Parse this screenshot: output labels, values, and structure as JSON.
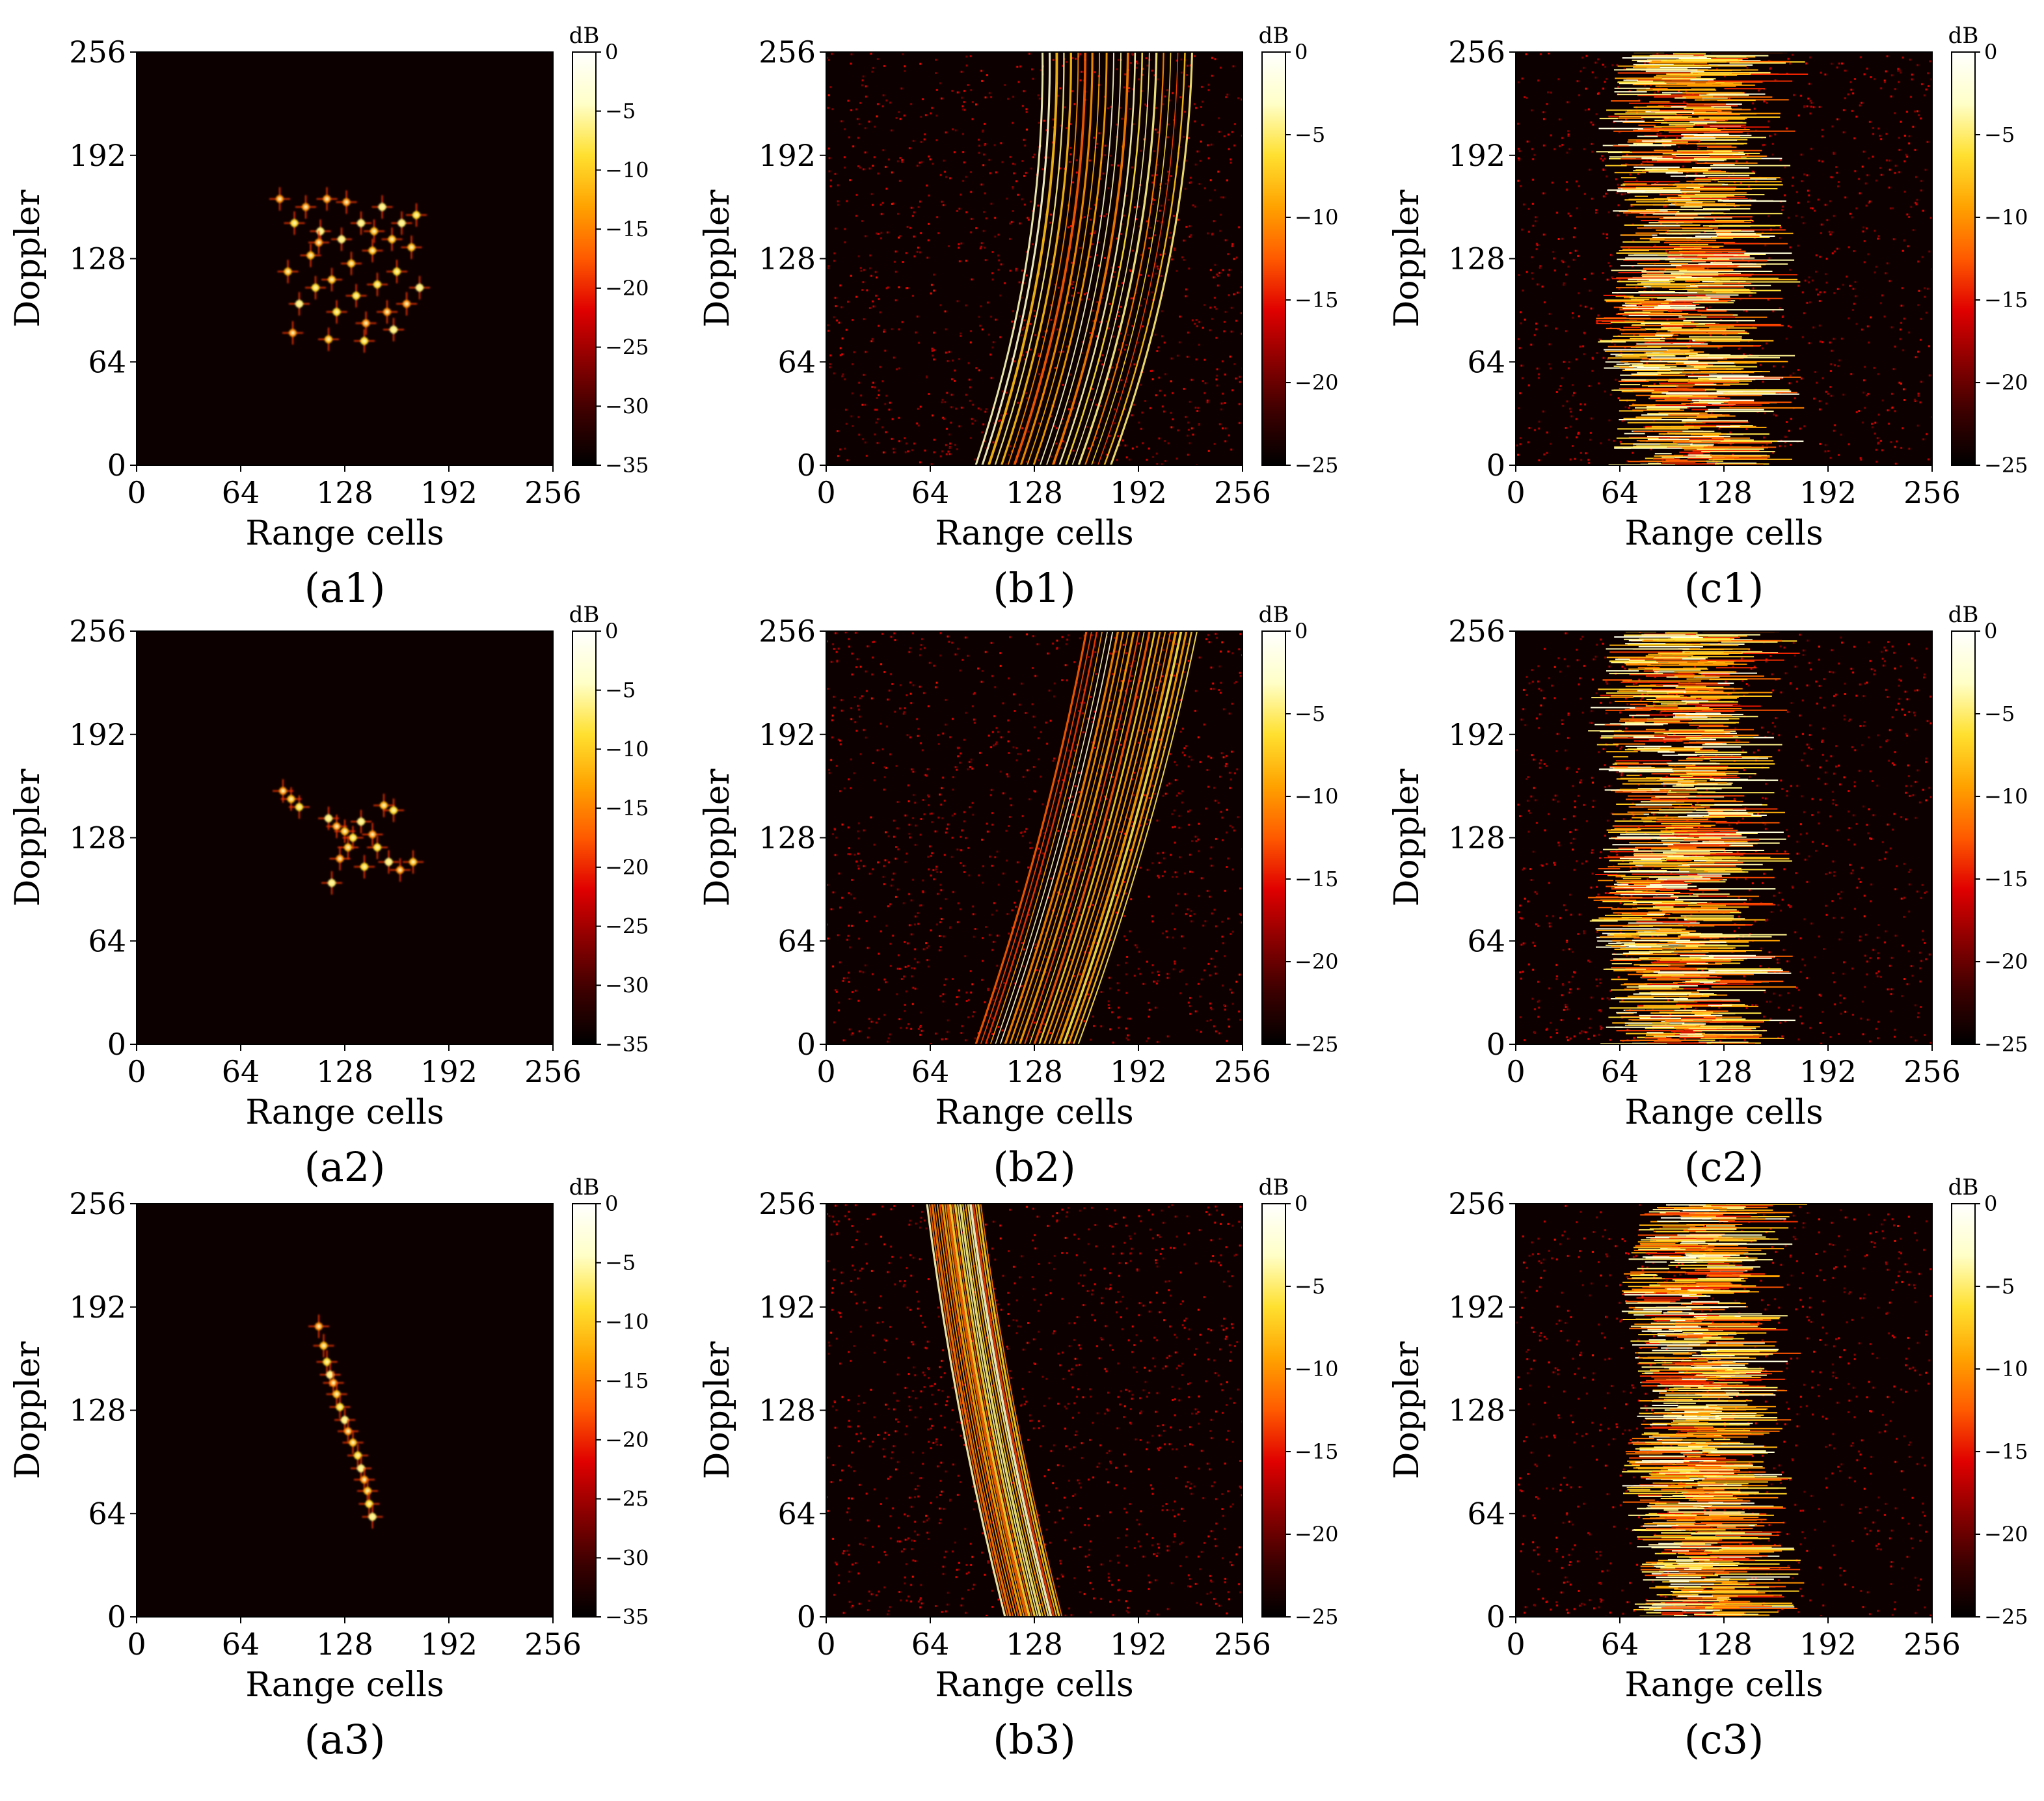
{
  "figure": {
    "colormap_name": "hot",
    "colors": {
      "background": "#ffffff",
      "image_floor": "#0d0000",
      "colormap_stops": [
        "#000000",
        "#3a0000",
        "#8a0000",
        "#e00000",
        "#ff5a00",
        "#ffa200",
        "#ffe030",
        "#ffffc8",
        "#ffffff"
      ]
    }
  },
  "chart_data": [
    {
      "panel": "a1",
      "caption": "(a1)",
      "type": "heatmap",
      "pattern": "points",
      "xlabel": "Range cells",
      "ylabel": "Doppler",
      "xlim": [
        0,
        256
      ],
      "ylim": [
        0,
        256
      ],
      "xticks": [
        "0",
        "64",
        "128",
        "192",
        "256"
      ],
      "yticks": [
        "0",
        "64",
        "128",
        "192",
        "256"
      ],
      "colorbar": {
        "unit": "dB",
        "range": [
          -35,
          0
        ],
        "ticks": [
          "0",
          "−5",
          "−10",
          "−15",
          "−20",
          "−25",
          "−30",
          "−35"
        ]
      },
      "noise": 0,
      "points": [
        [
          88,
          165
        ],
        [
          93,
          120
        ],
        [
          97,
          150
        ],
        [
          100,
          100
        ],
        [
          104,
          160
        ],
        [
          107,
          130
        ],
        [
          110,
          110
        ],
        [
          113,
          145
        ],
        [
          117,
          165
        ],
        [
          120,
          115
        ],
        [
          123,
          95
        ],
        [
          126,
          140
        ],
        [
          129,
          163
        ],
        [
          132,
          125
        ],
        [
          135,
          105
        ],
        [
          138,
          150
        ],
        [
          141,
          88
        ],
        [
          145,
          133
        ],
        [
          148,
          112
        ],
        [
          151,
          160
        ],
        [
          154,
          95
        ],
        [
          157,
          140
        ],
        [
          160,
          120
        ],
        [
          163,
          150
        ],
        [
          166,
          100
        ],
        [
          169,
          135
        ],
        [
          172,
          155
        ],
        [
          174,
          110
        ],
        [
          96,
          82
        ],
        [
          118,
          78
        ],
        [
          140,
          77
        ],
        [
          158,
          84
        ],
        [
          112,
          138
        ],
        [
          146,
          145
        ]
      ]
    },
    {
      "panel": "b1",
      "caption": "(b1)",
      "type": "heatmap",
      "pattern": "curves",
      "xlabel": "Range cells",
      "ylabel": "Doppler",
      "xlim": [
        0,
        256
      ],
      "ylim": [
        0,
        256
      ],
      "xticks": [
        "0",
        "64",
        "128",
        "192",
        "256"
      ],
      "yticks": [
        "0",
        "64",
        "128",
        "192",
        "256"
      ],
      "colorbar": {
        "unit": "dB",
        "range": [
          -25,
          0
        ],
        "ticks": [
          "0",
          "−5",
          "−10",
          "−15",
          "−20",
          "−25"
        ]
      },
      "noise": 0.45,
      "curve": {
        "start": [
          92,
          175
        ],
        "end": [
          133,
          225
        ],
        "bend": 22
      }
    },
    {
      "panel": "c1",
      "caption": "(c1)",
      "type": "heatmap",
      "pattern": "band",
      "xlabel": "Range cells",
      "ylabel": "Doppler",
      "xlim": [
        0,
        256
      ],
      "ylim": [
        0,
        256
      ],
      "xticks": [
        "0",
        "64",
        "128",
        "192",
        "256"
      ],
      "yticks": [
        "0",
        "64",
        "128",
        "192",
        "256"
      ],
      "colorbar": {
        "unit": "dB",
        "range": [
          -25,
          0
        ],
        "ticks": [
          "0",
          "−5",
          "−10",
          "−15",
          "−20",
          "−25"
        ]
      },
      "noise": 0.4,
      "band": [
        55,
        215
      ]
    },
    {
      "panel": "a2",
      "caption": "(a2)",
      "type": "heatmap",
      "pattern": "points",
      "xlabel": "Range cells",
      "ylabel": "Doppler",
      "xlim": [
        0,
        256
      ],
      "ylim": [
        0,
        256
      ],
      "xticks": [
        "0",
        "64",
        "128",
        "192",
        "256"
      ],
      "yticks": [
        "0",
        "64",
        "128",
        "192",
        "256"
      ],
      "colorbar": {
        "unit": "dB",
        "range": [
          -35,
          0
        ],
        "ticks": [
          "0",
          "−5",
          "−10",
          "−15",
          "−20",
          "−25",
          "−30",
          "−35"
        ]
      },
      "noise": 0,
      "points": [
        [
          90,
          157
        ],
        [
          95,
          152
        ],
        [
          100,
          147
        ],
        [
          118,
          140
        ],
        [
          123,
          135
        ],
        [
          128,
          132
        ],
        [
          133,
          128
        ],
        [
          138,
          138
        ],
        [
          145,
          130
        ],
        [
          152,
          148
        ],
        [
          158,
          145
        ],
        [
          120,
          100
        ],
        [
          125,
          115
        ],
        [
          130,
          122
        ],
        [
          140,
          110
        ],
        [
          155,
          113
        ],
        [
          162,
          108
        ],
        [
          170,
          113
        ],
        [
          148,
          122
        ]
      ]
    },
    {
      "panel": "b2",
      "caption": "(b2)",
      "type": "heatmap",
      "pattern": "curves",
      "xlabel": "Range cells",
      "ylabel": "Doppler",
      "xlim": [
        0,
        256
      ],
      "ylim": [
        0,
        256
      ],
      "xticks": [
        "0",
        "64",
        "128",
        "192",
        "256"
      ],
      "yticks": [
        "0",
        "64",
        "128",
        "192",
        "256"
      ],
      "colorbar": {
        "unit": "dB",
        "range": [
          -25,
          0
        ],
        "ticks": [
          "0",
          "−5",
          "−10",
          "−15",
          "−20",
          "−25"
        ]
      },
      "noise": 0.45,
      "curve": {
        "start": [
          92,
          155
        ],
        "end": [
          160,
          228
        ],
        "bend": 10
      }
    },
    {
      "panel": "c2",
      "caption": "(c2)",
      "type": "heatmap",
      "pattern": "band",
      "xlabel": "Range cells",
      "ylabel": "Doppler",
      "xlim": [
        0,
        256
      ],
      "ylim": [
        0,
        256
      ],
      "xticks": [
        "0",
        "64",
        "128",
        "192",
        "256"
      ],
      "yticks": [
        "0",
        "64",
        "128",
        "192",
        "256"
      ],
      "colorbar": {
        "unit": "dB",
        "range": [
          -25,
          0
        ],
        "ticks": [
          "0",
          "−5",
          "−10",
          "−15",
          "−20",
          "−25"
        ]
      },
      "noise": 0.4,
      "band": [
        50,
        210
      ]
    },
    {
      "panel": "a3",
      "caption": "(a3)",
      "type": "heatmap",
      "pattern": "points",
      "xlabel": "Range cells",
      "ylabel": "Doppler",
      "xlim": [
        0,
        256
      ],
      "ylim": [
        0,
        256
      ],
      "xticks": [
        "0",
        "64",
        "128",
        "192",
        "256"
      ],
      "yticks": [
        "0",
        "64",
        "128",
        "192",
        "256"
      ],
      "colorbar": {
        "unit": "dB",
        "range": [
          -35,
          0
        ],
        "ticks": [
          "0",
          "−5",
          "−10",
          "−15",
          "−20",
          "−25",
          "−30",
          "−35"
        ]
      },
      "noise": 0,
      "points": [
        [
          112,
          180
        ],
        [
          115,
          168
        ],
        [
          117,
          158
        ],
        [
          119,
          150
        ],
        [
          121,
          145
        ],
        [
          123,
          138
        ],
        [
          125,
          130
        ],
        [
          128,
          122
        ],
        [
          130,
          115
        ],
        [
          133,
          108
        ],
        [
          136,
          100
        ],
        [
          138,
          92
        ],
        [
          140,
          85
        ],
        [
          142,
          78
        ],
        [
          143,
          70
        ],
        [
          145,
          62
        ]
      ]
    },
    {
      "panel": "b3",
      "caption": "(b3)",
      "type": "heatmap",
      "pattern": "curves",
      "xlabel": "Range cells",
      "ylabel": "Doppler",
      "xlim": [
        0,
        256
      ],
      "ylim": [
        0,
        256
      ],
      "xticks": [
        "0",
        "64",
        "128",
        "192",
        "256"
      ],
      "yticks": [
        "0",
        "64",
        "128",
        "192",
        "256"
      ],
      "colorbar": {
        "unit": "dB",
        "range": [
          -25,
          0
        ],
        "ticks": [
          "0",
          "−5",
          "−10",
          "−15",
          "−20",
          "−25"
        ]
      },
      "noise": 0.45,
      "curve": {
        "start": [
          110,
          145
        ],
        "end": [
          62,
          95
        ],
        "bend": -8
      }
    },
    {
      "panel": "c3",
      "caption": "(c3)",
      "type": "heatmap",
      "pattern": "band",
      "xlabel": "Range cells",
      "ylabel": "Doppler",
      "xlim": [
        0,
        256
      ],
      "ylim": [
        0,
        256
      ],
      "xticks": [
        "0",
        "64",
        "128",
        "192",
        "256"
      ],
      "yticks": [
        "0",
        "64",
        "128",
        "192",
        "256"
      ],
      "colorbar": {
        "unit": "dB",
        "range": [
          -25,
          0
        ],
        "ticks": [
          "0",
          "−5",
          "−10",
          "−15",
          "−20",
          "−25"
        ]
      },
      "noise": 0.35,
      "band": [
        70,
        190
      ]
    }
  ]
}
